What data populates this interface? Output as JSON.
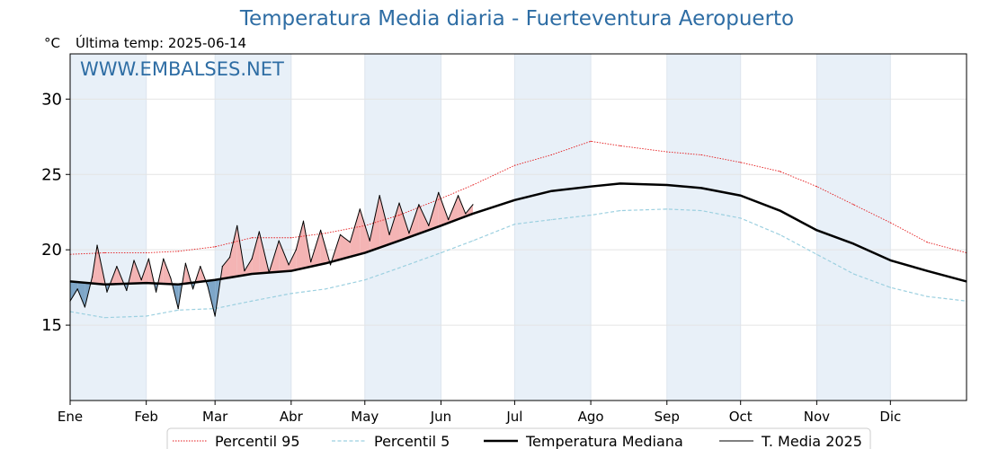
{
  "page": {
    "title": "Temperatura Media diaria - Fuerteventura Aeropuerto",
    "unit": "°C",
    "last_temp": "Última temp: 2025-06-14",
    "watermark": "WWW.EMBALSES.NET"
  },
  "chart_data": {
    "type": "line",
    "title": "Temperatura Media diaria - Fuerteventura Aeropuerto",
    "ylabel": "°C",
    "xlim": [
      1,
      366
    ],
    "ylim": [
      10,
      33
    ],
    "yticks": [
      15,
      20,
      25,
      30
    ],
    "grid": true,
    "legend_position": "bottom-center",
    "month_labels": [
      "Ene",
      "Feb",
      "Mar",
      "Abr",
      "May",
      "Jun",
      "Jul",
      "Ago",
      "Sep",
      "Oct",
      "Nov",
      "Dic"
    ],
    "month_start_days": [
      1,
      32,
      60,
      91,
      121,
      152,
      182,
      213,
      244,
      274,
      305,
      335
    ],
    "colors": {
      "p95": "#e41a1c",
      "p5": "#9cd0e0",
      "median": "#000000",
      "current": "#000000",
      "above_fill": "#f4b4b4",
      "below_fill": "#7ea6c8",
      "band": "#e8f0f8",
      "title": "#2e6da4"
    },
    "series": [
      {
        "name": "Percentil 95",
        "style": "dotted",
        "x": [
          1,
          15,
          32,
          45,
          60,
          75,
          91,
          105,
          121,
          135,
          152,
          165,
          182,
          197,
          213,
          225,
          244,
          258,
          274,
          290,
          305,
          320,
          335,
          350,
          366
        ],
        "values": [
          19.7,
          19.8,
          19.8,
          19.9,
          20.2,
          20.8,
          20.8,
          21.1,
          21.6,
          22.3,
          23.4,
          24.3,
          25.6,
          26.3,
          27.2,
          26.9,
          26.5,
          26.3,
          25.8,
          25.2,
          24.2,
          23.0,
          21.8,
          20.5,
          19.8
        ]
      },
      {
        "name": "Percentil 5",
        "style": "dashed",
        "x": [
          1,
          15,
          32,
          45,
          60,
          75,
          91,
          105,
          121,
          135,
          152,
          165,
          182,
          197,
          213,
          225,
          244,
          258,
          274,
          290,
          305,
          320,
          335,
          350,
          366
        ],
        "values": [
          15.9,
          15.5,
          15.6,
          16.0,
          16.1,
          16.6,
          17.1,
          17.4,
          18.0,
          18.8,
          19.8,
          20.6,
          21.7,
          22.0,
          22.3,
          22.6,
          22.7,
          22.6,
          22.1,
          21.0,
          19.7,
          18.4,
          17.5,
          16.9,
          16.6
        ]
      },
      {
        "name": "Temperatura Mediana",
        "style": "solid-thick",
        "x": [
          1,
          15,
          32,
          45,
          60,
          75,
          91,
          105,
          121,
          135,
          152,
          165,
          182,
          197,
          213,
          225,
          244,
          258,
          274,
          290,
          305,
          320,
          335,
          350,
          366
        ],
        "values": [
          17.9,
          17.7,
          17.8,
          17.7,
          18.0,
          18.4,
          18.6,
          19.1,
          19.8,
          20.6,
          21.6,
          22.4,
          23.3,
          23.9,
          24.2,
          24.4,
          24.3,
          24.1,
          23.6,
          22.6,
          21.3,
          20.4,
          19.3,
          18.6,
          17.9
        ]
      },
      {
        "name": "T. Media 2025",
        "style": "solid-thin",
        "x": [
          1,
          4,
          7,
          10,
          12,
          16,
          20,
          24,
          27,
          30,
          33,
          36,
          39,
          42,
          45,
          48,
          51,
          54,
          57,
          60,
          63,
          66,
          69,
          72,
          75,
          78,
          82,
          86,
          90,
          93,
          96,
          99,
          103,
          107,
          111,
          115,
          119,
          123,
          127,
          131,
          135,
          139,
          143,
          147,
          151,
          155,
          159,
          162,
          165
        ],
        "values": [
          16.6,
          17.4,
          16.2,
          18.2,
          20.3,
          17.2,
          18.9,
          17.3,
          19.3,
          18.0,
          19.4,
          17.2,
          19.4,
          18.1,
          16.1,
          19.1,
          17.4,
          18.9,
          17.6,
          15.6,
          18.9,
          19.5,
          21.6,
          18.6,
          19.4,
          21.2,
          18.5,
          20.6,
          19.0,
          20.0,
          21.9,
          19.2,
          21.3,
          19.0,
          21.0,
          20.5,
          22.7,
          20.6,
          23.6,
          21.0,
          23.1,
          21.1,
          23.0,
          21.6,
          23.8,
          22.0,
          23.6,
          22.4,
          23.0
        ]
      }
    ]
  }
}
